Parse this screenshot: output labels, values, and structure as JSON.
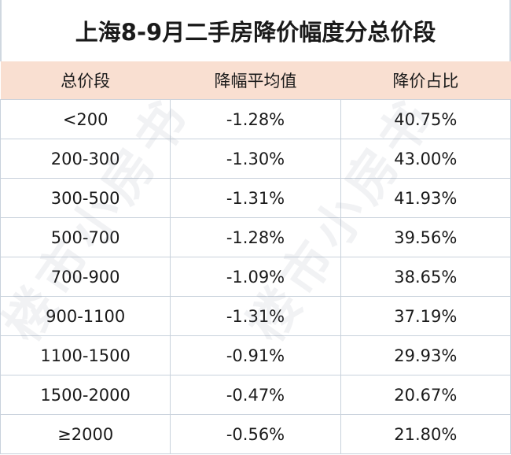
{
  "title": "上海8-9月二手房降价幅度分总价段",
  "watermark": "楼市小房书",
  "colors": {
    "header_bg": "#f9dfd1",
    "border": "#c9d2dc"
  },
  "table": {
    "headers": [
      "总价段",
      "降幅平均值",
      "降价占比"
    ],
    "rows": [
      [
        "<200",
        "-1.28%",
        "40.75%"
      ],
      [
        "200-300",
        "-1.30%",
        "43.00%"
      ],
      [
        "300-500",
        "-1.31%",
        "41.93%"
      ],
      [
        "500-700",
        "-1.28%",
        "39.56%"
      ],
      [
        "700-900",
        "-1.09%",
        "38.65%"
      ],
      [
        "900-1100",
        "-1.31%",
        "37.19%"
      ],
      [
        "1100-1500",
        "-0.91%",
        "29.93%"
      ],
      [
        "1500-2000",
        "-0.47%",
        "20.67%"
      ],
      [
        "≥2000",
        "-0.56%",
        "21.80%"
      ]
    ]
  }
}
